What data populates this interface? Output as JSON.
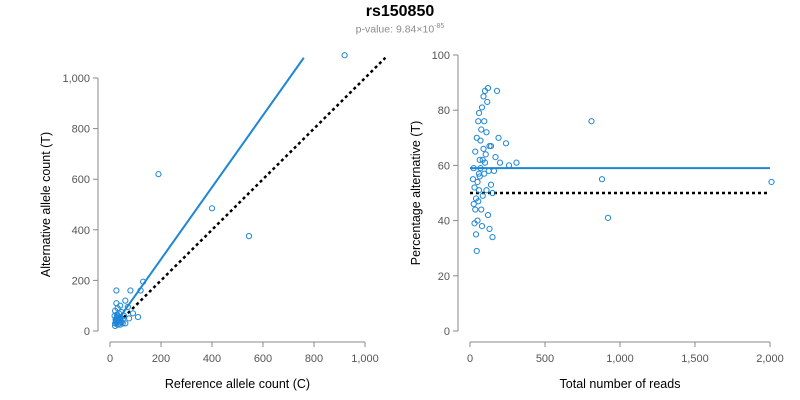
{
  "title": "rs150850",
  "subtitle": {
    "prefix": "p-value: 9.84×10",
    "exponent": "-85"
  },
  "colors": {
    "points": "#1f86d6",
    "fit_line": "#1f86d6",
    "reference_line": "#000000",
    "axis": "#888888",
    "tick_text": "#555555"
  },
  "chart_data": [
    {
      "type": "scatter",
      "xlabel": "Reference allele count (C)",
      "ylabel": "Alternative allele count (T)",
      "xlim": [
        0,
        1000
      ],
      "ylim": [
        0,
        1000
      ],
      "xticks": [
        0,
        200,
        400,
        600,
        800,
        1000
      ],
      "yticks": [
        0,
        200,
        400,
        600,
        800,
        1000
      ],
      "xtick_labels": [
        "0",
        "200",
        "400",
        "600",
        "800",
        "1,000"
      ],
      "ytick_labels": [
        "0",
        "200",
        "400",
        "600",
        "800",
        "1,000"
      ],
      "grid": false,
      "fit_line": {
        "style": "solid",
        "x": [
          18,
          760
        ],
        "y": [
          25,
          1080
        ]
      },
      "reference_line": {
        "style": "dotted",
        "x": [
          20,
          1080
        ],
        "y": [
          20,
          1080
        ]
      },
      "points": [
        [
          920,
          1090
        ],
        [
          190,
          620
        ],
        [
          400,
          485
        ],
        [
          545,
          375
        ],
        [
          130,
          195
        ],
        [
          120,
          160
        ],
        [
          80,
          160
        ],
        [
          25,
          160
        ],
        [
          60,
          120
        ],
        [
          25,
          110
        ],
        [
          40,
          100
        ],
        [
          70,
          95
        ],
        [
          90,
          70
        ],
        [
          110,
          55
        ],
        [
          75,
          50
        ],
        [
          55,
          60
        ],
        [
          45,
          75
        ],
        [
          30,
          90
        ],
        [
          35,
          70
        ],
        [
          20,
          80
        ],
        [
          50,
          45
        ],
        [
          40,
          55
        ],
        [
          30,
          60
        ],
        [
          25,
          50
        ],
        [
          45,
          35
        ],
        [
          35,
          40
        ],
        [
          60,
          30
        ],
        [
          25,
          40
        ],
        [
          30,
          35
        ],
        [
          20,
          30
        ],
        [
          40,
          25
        ],
        [
          20,
          20
        ],
        [
          30,
          25
        ],
        [
          22,
          45
        ],
        [
          28,
          55
        ],
        [
          35,
          30
        ],
        [
          50,
          30
        ],
        [
          18,
          60
        ],
        [
          27,
          65
        ],
        [
          33,
          50
        ],
        [
          42,
          42
        ],
        [
          24,
          35
        ],
        [
          38,
          48
        ]
      ]
    },
    {
      "type": "scatter",
      "xlabel": "Total number of reads",
      "ylabel": "Percentage alternative (T)",
      "xlim": [
        0,
        2000
      ],
      "ylim": [
        0,
        100
      ],
      "xticks": [
        0,
        500,
        1000,
        1500,
        2000
      ],
      "yticks": [
        0,
        20,
        40,
        60,
        80,
        100
      ],
      "xtick_labels": [
        "0",
        "500",
        "1,000",
        "1,500",
        "2,000"
      ],
      "ytick_labels": [
        "0",
        "20",
        "40",
        "60",
        "80",
        "100"
      ],
      "grid": false,
      "fit_line": {
        "style": "solid",
        "x": [
          0,
          2000
        ],
        "y": [
          59,
          59
        ]
      },
      "reference_line": {
        "style": "dotted",
        "x": [
          0,
          2000
        ],
        "y": [
          50,
          50
        ]
      },
      "points": [
        [
          2010,
          54
        ],
        [
          920,
          41
        ],
        [
          880,
          55
        ],
        [
          810,
          76
        ],
        [
          310,
          61
        ],
        [
          260,
          60
        ],
        [
          240,
          68
        ],
        [
          180,
          87
        ],
        [
          170,
          63
        ],
        [
          150,
          50
        ],
        [
          140,
          67
        ],
        [
          130,
          37
        ],
        [
          150,
          34
        ],
        [
          120,
          88
        ],
        [
          110,
          72
        ],
        [
          100,
          87
        ],
        [
          90,
          85
        ],
        [
          80,
          81
        ],
        [
          75,
          73
        ],
        [
          65,
          62
        ],
        [
          60,
          57
        ],
        [
          55,
          47
        ],
        [
          50,
          40
        ],
        [
          45,
          29
        ],
        [
          40,
          35
        ],
        [
          35,
          44
        ],
        [
          30,
          52
        ],
        [
          25,
          59
        ],
        [
          20,
          55
        ],
        [
          100,
          61
        ],
        [
          110,
          51
        ],
        [
          120,
          42
        ],
        [
          90,
          66
        ],
        [
          70,
          69
        ],
        [
          60,
          79
        ],
        [
          85,
          49
        ],
        [
          95,
          57
        ],
        [
          105,
          64
        ],
        [
          125,
          58
        ],
        [
          30,
          39
        ],
        [
          25,
          46
        ],
        [
          45,
          70
        ],
        [
          55,
          76
        ],
        [
          65,
          56
        ],
        [
          75,
          44
        ],
        [
          80,
          38
        ],
        [
          140,
          53
        ],
        [
          160,
          58
        ],
        [
          190,
          70
        ],
        [
          200,
          61
        ],
        [
          35,
          65
        ],
        [
          50,
          54
        ],
        [
          40,
          48
        ],
        [
          70,
          59
        ],
        [
          85,
          62
        ],
        [
          115,
          83
        ],
        [
          95,
          76
        ],
        [
          130,
          67
        ],
        [
          60,
          51
        ]
      ]
    }
  ]
}
